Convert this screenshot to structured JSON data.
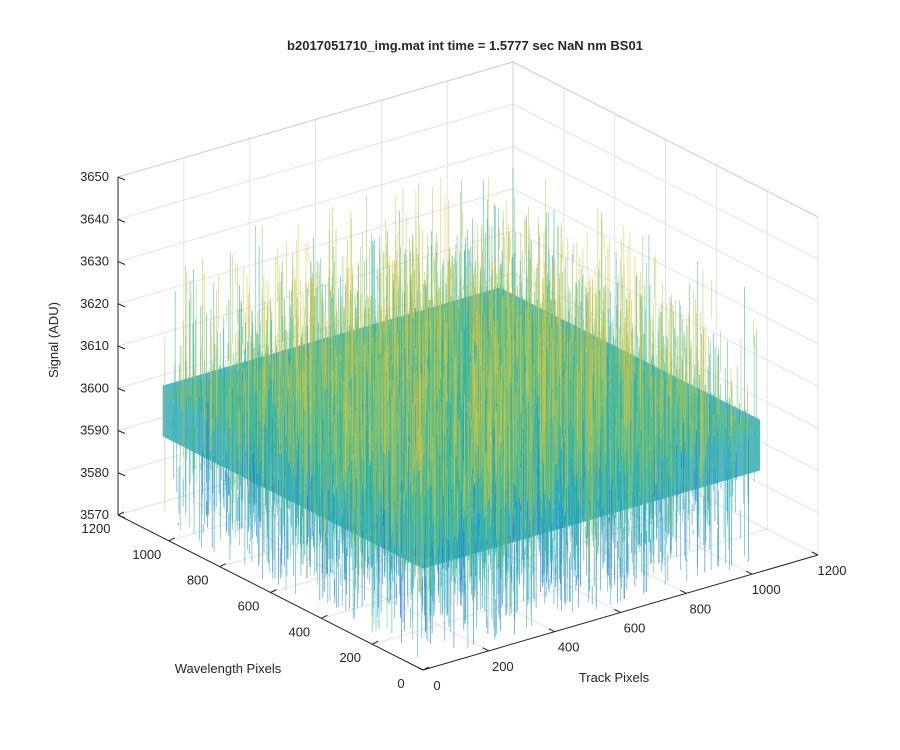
{
  "chart_data": {
    "type": "surface3d",
    "title": "b2017051710_img.mat int time = 1.5777 sec  NaN nm BS01",
    "xlabel": "Track Pixels",
    "ylabel": "Wavelength Pixels",
    "zlabel": "Signal (ADU)",
    "xlim": [
      0,
      1200
    ],
    "ylim": [
      0,
      1200
    ],
    "zlim": [
      3570,
      3650
    ],
    "x_ticks": [
      0,
      200,
      400,
      600,
      800,
      1000,
      1200
    ],
    "y_ticks": [
      0,
      200,
      400,
      600,
      800,
      1000,
      1200
    ],
    "z_ticks": [
      3570,
      3580,
      3590,
      3600,
      3610,
      3620,
      3630,
      3640,
      3650
    ],
    "data_extent": {
      "x": [
        0,
        1024
      ],
      "y": [
        0,
        1024
      ]
    },
    "surface_mean": 3600,
    "surface_noise_range": [
      3572,
      3638
    ],
    "grid": true,
    "colormap": [
      "#1f6fd1",
      "#1d9bd2",
      "#21b3b0",
      "#52bf86",
      "#a9c758",
      "#e3c639"
    ]
  }
}
